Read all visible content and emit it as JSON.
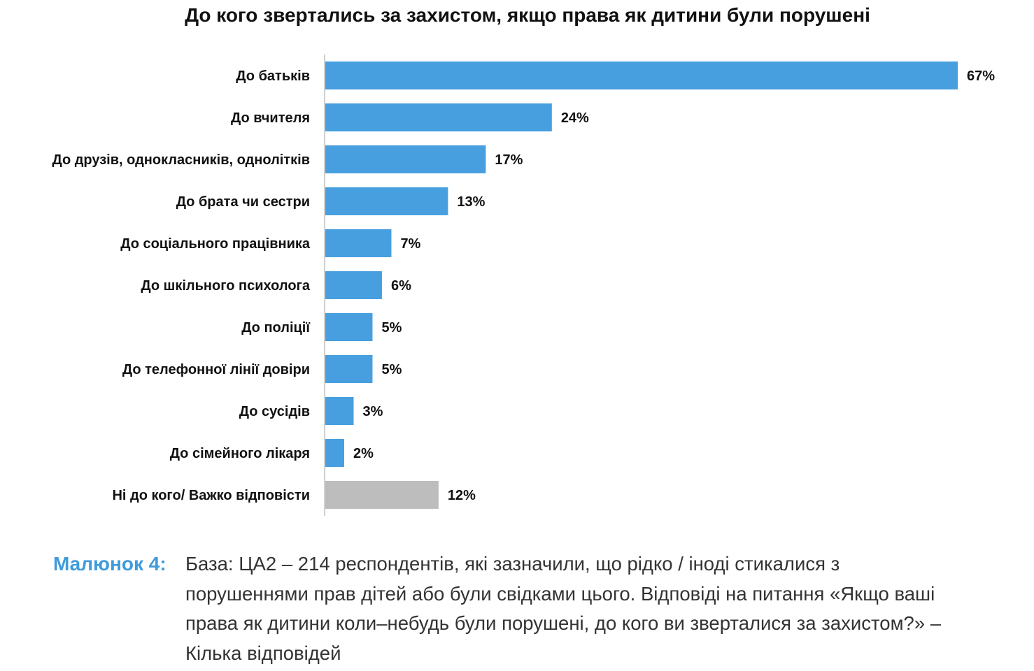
{
  "chart_data": {
    "type": "bar",
    "orientation": "horizontal",
    "title": "До кого звертались за захистом, якщо права як дитини були порушені",
    "categories": [
      "До батьків",
      "До вчителя",
      "До друзів, однокласників, однолітків",
      "До брата чи сестри",
      "До соціального працівника",
      "До шкільного психолога",
      "До поліції",
      "До телефонної лінії довіри",
      "До сусідів",
      "До сімейного лікаря",
      "Ні до кого/ Важко відповісти"
    ],
    "values": [
      67,
      24,
      17,
      13,
      7,
      6,
      5,
      5,
      3,
      2,
      12
    ],
    "value_labels": [
      "67%",
      "24%",
      "17%",
      "13%",
      "7%",
      "6%",
      "5%",
      "5%",
      "3%",
      "2%",
      "12%"
    ],
    "colors": [
      "#479fdf",
      "#479fdf",
      "#479fdf",
      "#479fdf",
      "#479fdf",
      "#479fdf",
      "#479fdf",
      "#479fdf",
      "#479fdf",
      "#479fdf",
      "#bdbdbd"
    ],
    "xlabel": "",
    "ylabel": "",
    "xlim": [
      0,
      67
    ],
    "grid": false,
    "legend": "none"
  },
  "caption": {
    "label": "Малюнок 4:",
    "text": "База: ЦА2 – 214 респондентів, які зазначили, що рідко / іноді  стикалися з порушеннями прав дітей або були свідками цього. Відповіді на питання «Якщо ваші права як дитини коли–небудь були порушені, до кого ви зверталися за захистом?» – Кілька відповідей"
  }
}
